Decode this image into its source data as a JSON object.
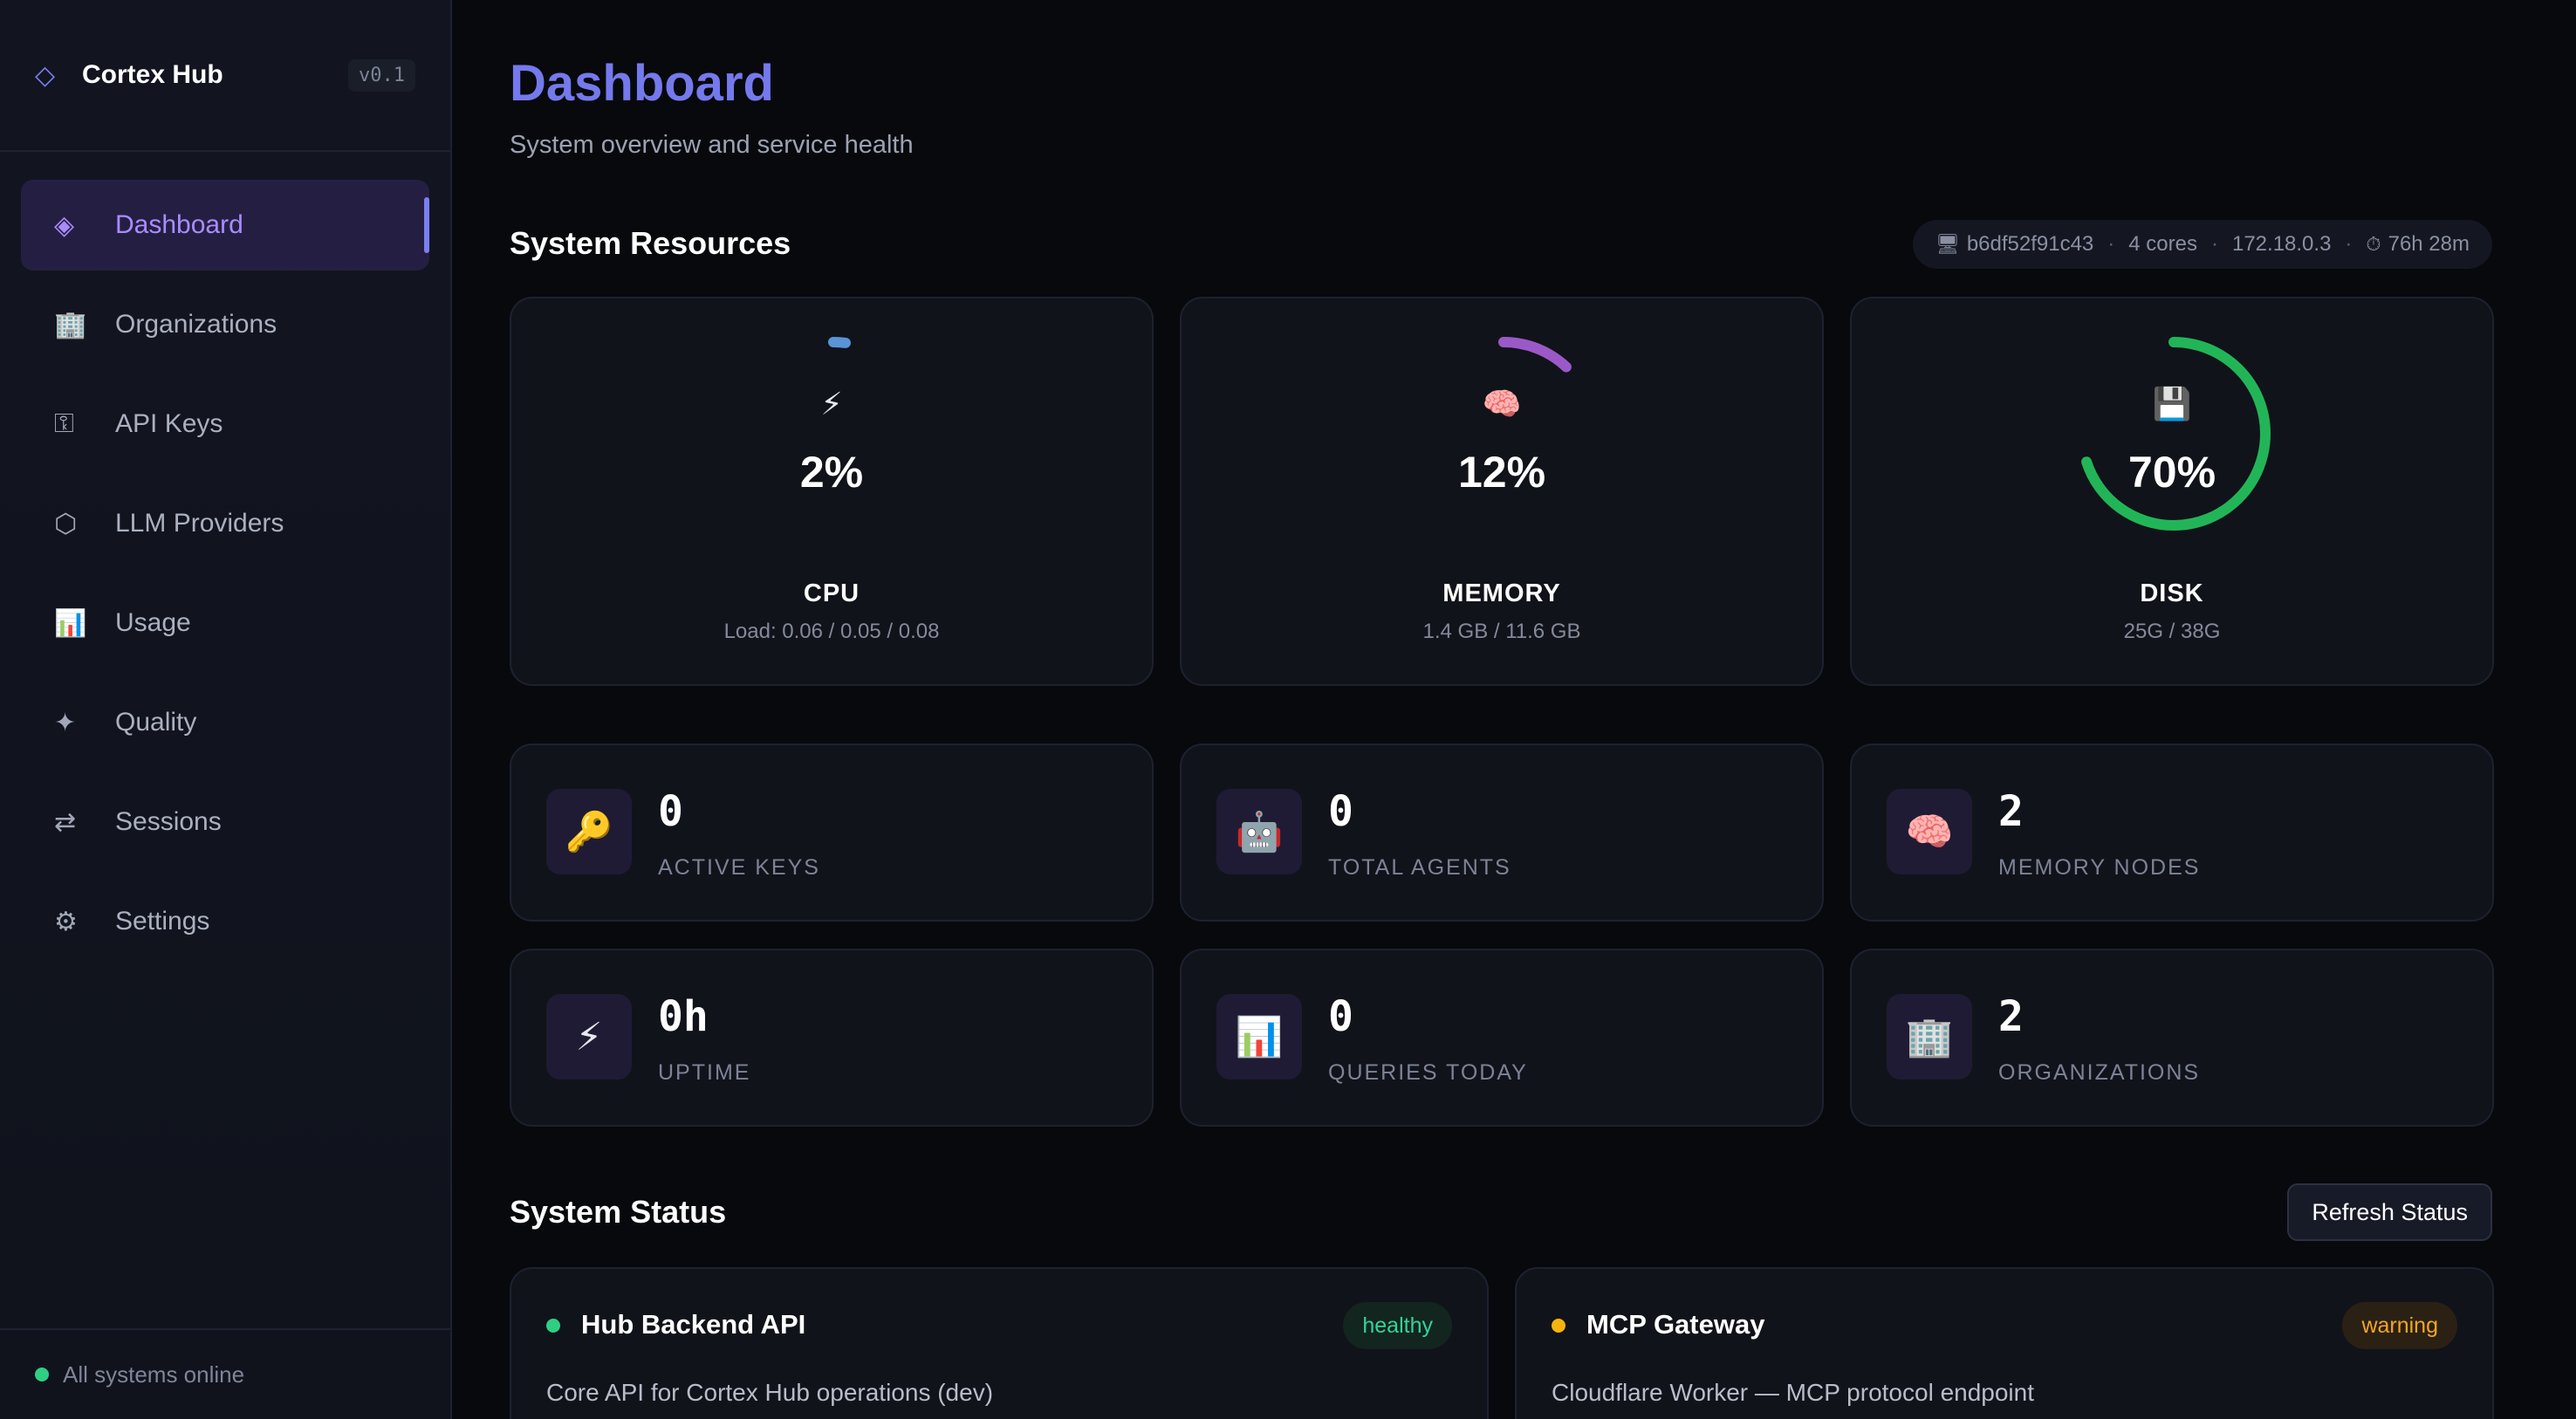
{
  "brand": {
    "icon": "diamond-outline-icon",
    "name": "Cortex Hub",
    "version": "v0.1"
  },
  "nav": [
    {
      "icon": "diamond-icon",
      "glyph": "◈",
      "label": "Dashboard",
      "active": true
    },
    {
      "icon": "office-building-icon",
      "glyph": "🏢",
      "label": "Organizations"
    },
    {
      "icon": "key-icon",
      "glyph": "⚿",
      "label": "API Keys"
    },
    {
      "icon": "hexagon-icon",
      "glyph": "⬡",
      "label": "LLM Providers"
    },
    {
      "icon": "bar-chart-icon",
      "glyph": "📊",
      "label": "Usage"
    },
    {
      "icon": "sparkle-icon",
      "glyph": "✦",
      "label": "Quality"
    },
    {
      "icon": "arrows-exchange-icon",
      "glyph": "⇄",
      "label": "Sessions"
    },
    {
      "icon": "gear-icon",
      "glyph": "⚙",
      "label": "Settings"
    }
  ],
  "sidebar_footer": {
    "status_text": "All systems online",
    "status_color": "#2fcf83"
  },
  "header": {
    "title": "Dashboard",
    "subtitle": "System overview and service health"
  },
  "system_resources": {
    "title": "System Resources",
    "host": {
      "hostname": "b6df52f91c43",
      "cores": "4 cores",
      "ip": "172.18.0.3",
      "uptime": "76h 28m"
    },
    "gauges": [
      {
        "name": "CPU",
        "icon": "lightning-icon",
        "glyph": "⚡",
        "percent": 2,
        "value_text": "2%",
        "detail": "Load: 0.06 / 0.05 / 0.08",
        "color": "#5a93d6"
      },
      {
        "name": "MEMORY",
        "icon": "brain-icon",
        "glyph": "🧠",
        "percent": 12,
        "value_text": "12%",
        "detail": "1.4 GB / 11.6 GB",
        "color": "#9b59c7"
      },
      {
        "name": "DISK",
        "icon": "floppy-disk-icon",
        "glyph": "💾",
        "percent": 70,
        "value_text": "70%",
        "detail": "25G / 38G",
        "color": "#22b558"
      }
    ]
  },
  "stats": [
    {
      "icon": "key-icon",
      "glyph": "🔑",
      "value": "0",
      "label": "ACTIVE KEYS"
    },
    {
      "icon": "robot-icon",
      "glyph": "🤖",
      "value": "0",
      "label": "TOTAL AGENTS"
    },
    {
      "icon": "brain-icon",
      "glyph": "🧠",
      "value": "2",
      "label": "MEMORY NODES"
    },
    {
      "icon": "lightning-icon",
      "glyph": "⚡",
      "value": "0h",
      "label": "UPTIME"
    },
    {
      "icon": "bar-chart-icon",
      "glyph": "📊",
      "value": "0",
      "label": "QUERIES TODAY"
    },
    {
      "icon": "office-building-icon",
      "glyph": "🏢",
      "value": "2",
      "label": "ORGANIZATIONS"
    }
  ],
  "system_status": {
    "title": "System Status",
    "refresh_label": "Refresh Status",
    "services": [
      {
        "name": "Hub Backend API",
        "status": "healthy",
        "description": "Core API for Cortex Hub operations (dev)",
        "dot_color": "#2fcf83",
        "badge_bg": "#12251f",
        "badge_color": "#34d399"
      },
      {
        "name": "MCP Gateway",
        "status": "warning",
        "description": "Cloudflare Worker — MCP protocol endpoint",
        "dot_color": "#f5b50c",
        "badge_bg": "#2a2114",
        "badge_color": "#f5a524"
      }
    ]
  }
}
